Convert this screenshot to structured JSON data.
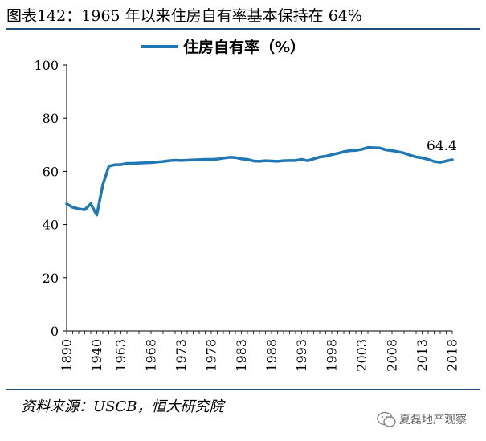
{
  "figure": {
    "title": "图表142：1965 年以来住房自有率基本保持在 64%",
    "source": "资料来源：USCB，恒大研究院",
    "watermark": "夏磊地产观察"
  },
  "colors": {
    "line": "#1f77b4",
    "rule": "#1f4e79",
    "axis": "#000000"
  },
  "chart_data": {
    "type": "line",
    "title": "",
    "xlabel": "",
    "ylabel": "",
    "ylim": [
      0,
      100
    ],
    "yticks": [
      0,
      20,
      40,
      60,
      80,
      100
    ],
    "x_tick_labels": [
      "1890",
      "1940",
      "1963",
      "1968",
      "1973",
      "1978",
      "1983",
      "1988",
      "1993",
      "1998",
      "2003",
      "2008",
      "2013",
      "2018"
    ],
    "legend": "住房自有率（%）",
    "annotation": "64.4",
    "series": [
      {
        "name": "住房自有率（%）",
        "x": [
          "1890",
          "1900",
          "1910",
          "1920",
          "1930",
          "1940",
          "1950",
          "1960",
          "1962",
          "1963",
          "1964",
          "1965",
          "1966",
          "1967",
          "1968",
          "1969",
          "1970",
          "1971",
          "1972",
          "1973",
          "1974",
          "1975",
          "1976",
          "1977",
          "1978",
          "1979",
          "1980",
          "1981",
          "1982",
          "1983",
          "1984",
          "1985",
          "1986",
          "1987",
          "1988",
          "1989",
          "1990",
          "1991",
          "1992",
          "1993",
          "1994",
          "1995",
          "1996",
          "1997",
          "1998",
          "1999",
          "2000",
          "2001",
          "2002",
          "2003",
          "2004",
          "2005",
          "2006",
          "2007",
          "2008",
          "2009",
          "2010",
          "2011",
          "2012",
          "2013",
          "2014",
          "2015",
          "2016",
          "2017",
          "2018"
        ],
        "values": [
          47.8,
          46.5,
          45.9,
          45.6,
          47.8,
          43.6,
          55.0,
          61.9,
          62.5,
          62.5,
          63.0,
          63.0,
          63.1,
          63.2,
          63.3,
          63.5,
          63.7,
          64.0,
          64.2,
          64.1,
          64.2,
          64.3,
          64.4,
          64.5,
          64.5,
          64.6,
          65.0,
          65.3,
          65.2,
          64.7,
          64.5,
          63.9,
          63.8,
          64.0,
          63.9,
          63.8,
          64.0,
          64.1,
          64.1,
          64.5,
          64.0,
          64.7,
          65.4,
          65.7,
          66.3,
          66.8,
          67.4,
          67.8,
          67.9,
          68.3,
          69.0,
          68.9,
          68.8,
          68.1,
          67.8,
          67.4,
          66.9,
          66.1,
          65.4,
          65.1,
          64.5,
          63.7,
          63.4,
          63.9,
          64.4
        ]
      }
    ]
  }
}
